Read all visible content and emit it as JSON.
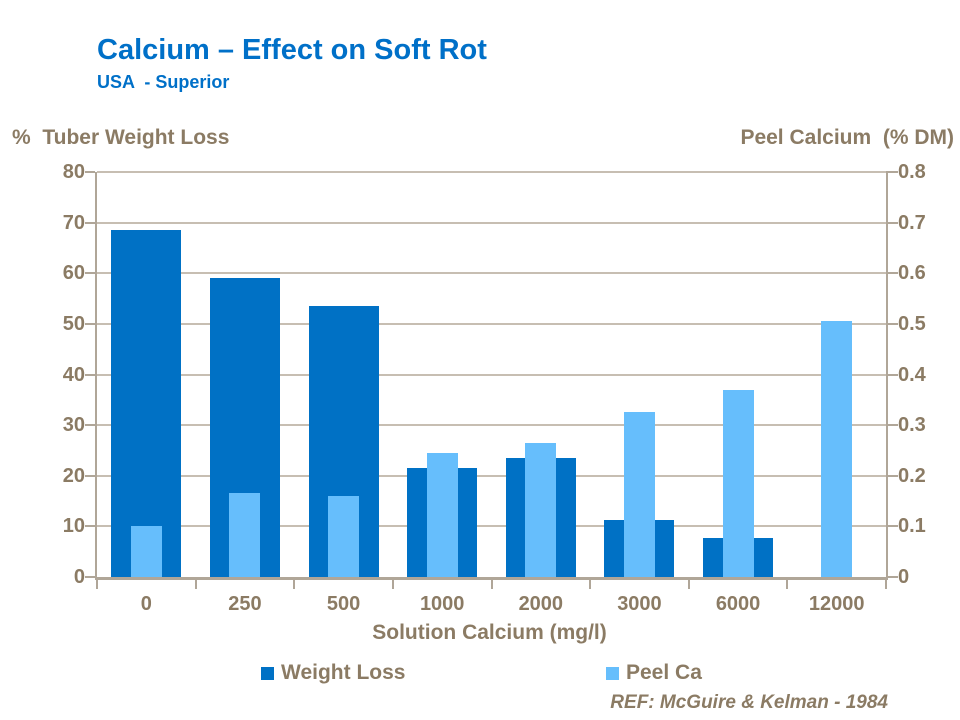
{
  "header": {
    "title": "Calcium – Effect on Soft Rot",
    "subtitle": "USA  - Superior"
  },
  "footer": {
    "ref": "REF: McGuire & Kelman - 1984"
  },
  "colors": {
    "title_blue": "#0070C8",
    "axis_text": "#8B7B64",
    "gridline": "#C7BEB2",
    "axis_line": "#B0A698",
    "weight_loss_bar": "#0071C5",
    "peel_ca_bar": "#66BEFC",
    "background": "#FFFFFF"
  },
  "chart_data": {
    "type": "bar",
    "title": "Calcium – Effect on Soft Rot",
    "subtitle": "USA - Superior",
    "categories": [
      "0",
      "250",
      "500",
      "1000",
      "2000",
      "3000",
      "6000",
      "12000"
    ],
    "series": [
      {
        "name": "Weight Loss",
        "axis": "left",
        "color": "#0071C5",
        "values": [
          68.5,
          59,
          53.5,
          21.5,
          23.5,
          11.3,
          7.8,
          null
        ]
      },
      {
        "name": "Peel Ca",
        "axis": "right",
        "color": "#66BEFC",
        "values": [
          0.1,
          0.165,
          0.16,
          0.245,
          0.265,
          0.325,
          0.37,
          0.505
        ]
      }
    ],
    "xlabel": "Solution Calcium (mg/l)",
    "left_axis_header": "%  Tuber Weight Loss",
    "right_axis_header": "Peel Calcium  (% DM)",
    "left_ylim": [
      0,
      80
    ],
    "right_ylim": [
      0,
      0.8
    ],
    "left_ticks": [
      0,
      10,
      20,
      30,
      40,
      50,
      60,
      70,
      80
    ],
    "right_tick_labels": [
      "0",
      "0.1",
      "0.2",
      "0.3",
      "0.4",
      "0.5",
      "0.6",
      "0.7",
      "0.8"
    ],
    "grid": "horizontal",
    "legend_position": "bottom"
  }
}
